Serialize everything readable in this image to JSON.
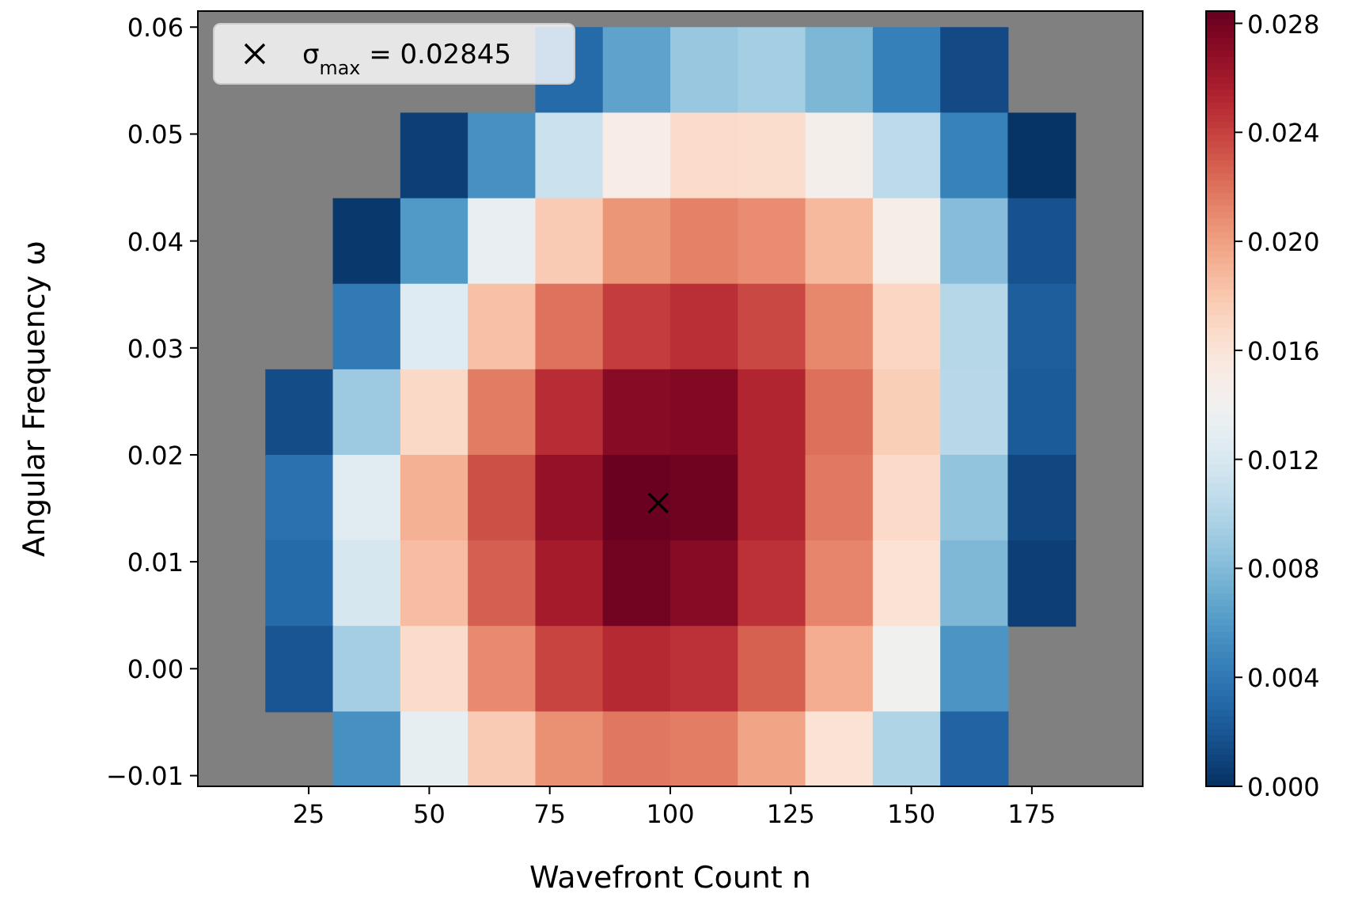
{
  "chart_data": {
    "type": "heatmap",
    "xlabel": "Wavefront Count n",
    "ylabel": "Angular Frequency ω",
    "x": [
      9,
      23,
      37,
      51,
      65,
      79,
      93,
      107,
      121,
      135,
      149,
      163,
      177,
      191
    ],
    "y": [
      0.056,
      0.048,
      0.04,
      0.032,
      0.024,
      0.016,
      0.008,
      0.0,
      -0.008
    ],
    "cells": [
      [
        null,
        null,
        null,
        null,
        null,
        0.0032,
        0.0066,
        0.0089,
        0.0094,
        0.0078,
        0.0045,
        0.0014,
        null,
        null
      ],
      [
        null,
        null,
        null,
        0.0008,
        0.0055,
        0.0113,
        0.015,
        0.0167,
        0.0166,
        0.0146,
        0.0105,
        0.0046,
        0.0002,
        null
      ],
      [
        null,
        null,
        0.0004,
        0.006,
        0.0132,
        0.0178,
        0.0205,
        0.0214,
        0.0209,
        0.0188,
        0.0149,
        0.0082,
        0.0018,
        null
      ],
      [
        null,
        null,
        0.0041,
        0.0125,
        0.0184,
        0.022,
        0.0242,
        0.0248,
        0.0237,
        0.0211,
        0.0171,
        0.0102,
        0.0025,
        null
      ],
      [
        null,
        0.0015,
        0.0091,
        0.0169,
        0.0216,
        0.0249,
        0.0272,
        0.0274,
        0.0253,
        0.0221,
        0.0176,
        0.0103,
        0.0023,
        null
      ],
      [
        null,
        0.0036,
        0.0126,
        0.0192,
        0.0234,
        0.0267,
        0.0283,
        0.0281,
        0.0253,
        0.0217,
        0.0168,
        0.0087,
        0.0012,
        null
      ],
      [
        null,
        0.0032,
        0.0119,
        0.0186,
        0.0228,
        0.0259,
        0.028,
        0.0272,
        0.0247,
        0.0212,
        0.0162,
        0.0079,
        0.0008,
        null
      ],
      [
        null,
        0.002,
        0.0094,
        0.0167,
        0.021,
        0.0239,
        0.0251,
        0.0247,
        0.0227,
        0.0194,
        0.014,
        0.0057,
        null,
        null
      ],
      [
        null,
        null,
        0.0055,
        0.0131,
        0.0178,
        0.0207,
        0.0218,
        0.0215,
        0.0198,
        0.0162,
        0.0099,
        0.0028,
        null,
        null
      ]
    ],
    "series": [
      {
        "type": "scatter",
        "name": "σ$_{max}$ = 0.02845",
        "color": "#000000",
        "x": [
          97.5
        ],
        "values": [
          0.0155
        ],
        "marker": "cross"
      }
    ],
    "legend": "top left",
    "xlim": [
      2,
      198
    ],
    "xticks": [
      25,
      50,
      75,
      100,
      125,
      150,
      175
    ],
    "ylim": [
      -0.011,
      0.0615
    ],
    "yticks": [
      {
        "value": -0.01,
        "label": "−0.01"
      },
      {
        "value": 0,
        "label": "0.00"
      },
      {
        "value": 0.01,
        "label": "0.01"
      },
      {
        "value": 0.02,
        "label": "0.02"
      },
      {
        "value": 0.03,
        "label": "0.03"
      },
      {
        "value": 0.04,
        "label": "0.04"
      },
      {
        "value": 0.05,
        "label": "0.05"
      },
      {
        "value": 0.06,
        "label": "0.06"
      }
    ],
    "clim": [
      0,
      0.02845
    ],
    "cticks": [
      {
        "value": 0,
        "label": "0.000"
      },
      {
        "value": 0.004,
        "label": "0.004"
      },
      {
        "value": 0.008,
        "label": "0.008"
      },
      {
        "value": 0.012,
        "label": "0.012"
      },
      {
        "value": 0.016,
        "label": "0.016"
      },
      {
        "value": 0.02,
        "label": "0.020"
      },
      {
        "value": 0.024,
        "label": "0.024"
      },
      {
        "value": 0.028,
        "label": "0.028"
      }
    ]
  }
}
